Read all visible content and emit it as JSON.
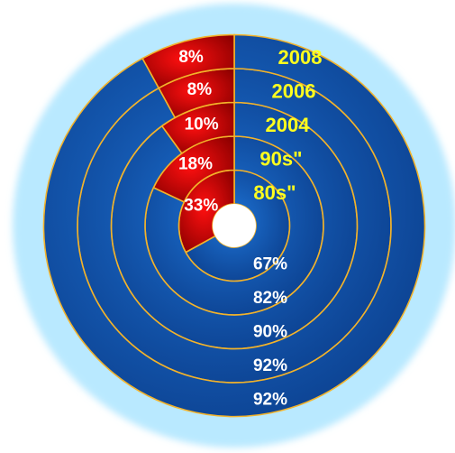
{
  "colors": {
    "primary": "#1E74D6",
    "primary_dark": "#0B3E8C",
    "secondary": "#FF1010",
    "secondary_dark": "#8E0000",
    "border": "#F3B32A",
    "glow": "#B9E9FF",
    "year_text": "#FFFF1E",
    "pct_text": "#FFFFFF"
  },
  "chart_data": {
    "type": "doughnut",
    "title": "",
    "categories": [
      "80s\"",
      "90s\"",
      "2004",
      "2006",
      "2008"
    ],
    "series": [
      {
        "values": [
          67,
          82,
          90,
          92,
          92
        ],
        "labels": [
          "67%",
          "82%",
          "90%",
          "92%",
          "92%"
        ]
      },
      {
        "values": [
          33,
          18,
          10,
          8,
          8
        ],
        "labels": [
          "33%",
          "18%",
          "10%",
          "8%",
          "8%"
        ]
      }
    ]
  }
}
